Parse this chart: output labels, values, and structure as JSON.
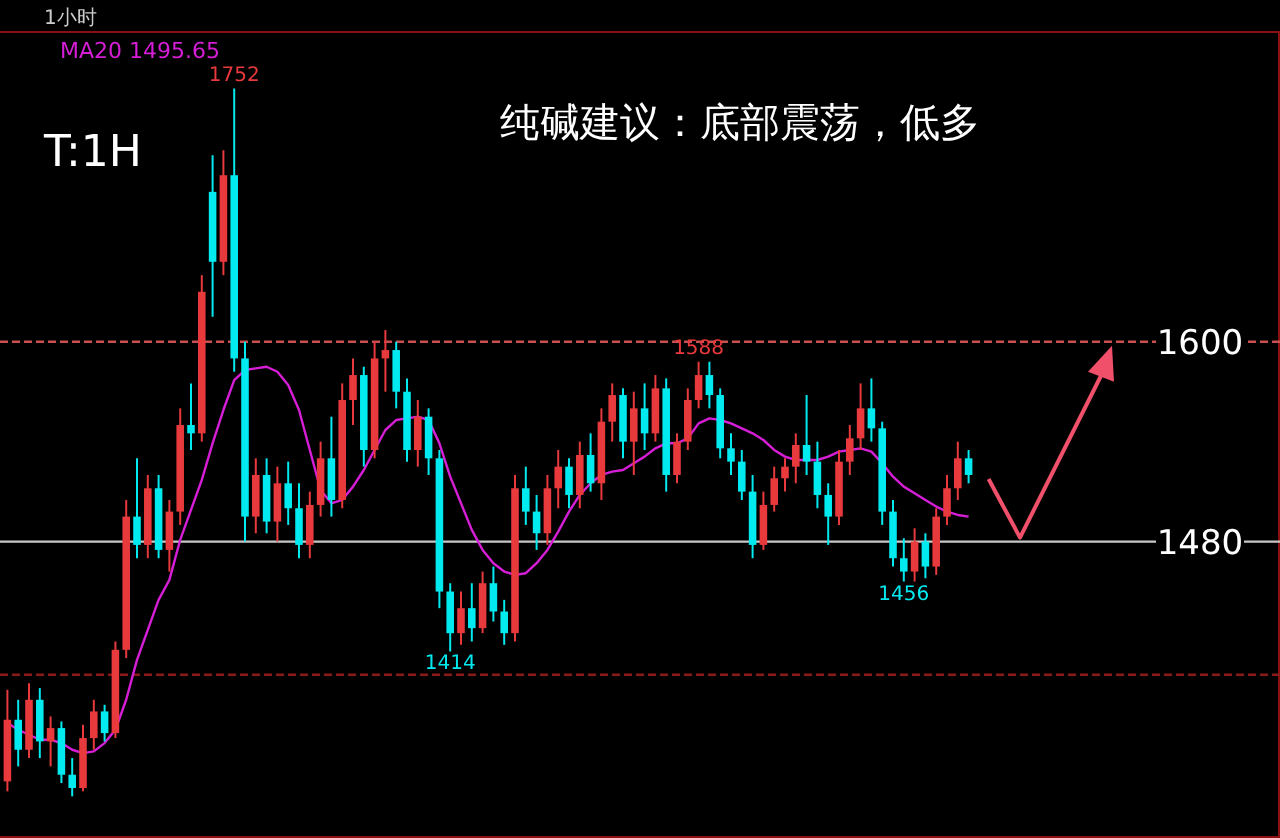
{
  "chart_data": {
    "type": "candlestick",
    "title": "纯碱建议：底部震荡，低多",
    "categories": [
      null,
      null,
      null,
      null,
      null,
      null,
      null,
      null,
      null,
      null,
      null,
      null,
      null,
      null,
      null,
      null,
      null,
      null,
      null,
      null,
      null,
      null,
      null,
      null,
      null,
      null,
      null,
      null,
      null,
      null,
      null,
      null,
      null,
      null,
      null,
      null,
      null,
      null,
      null,
      null,
      null,
      null,
      null,
      null,
      null,
      null,
      null,
      null,
      null,
      null,
      null,
      null,
      null,
      null,
      null,
      null,
      null,
      null,
      null,
      null,
      null,
      null,
      null,
      null,
      null,
      null,
      null,
      null,
      null,
      null,
      null,
      null,
      null,
      null,
      null,
      null,
      null,
      null,
      null,
      null,
      null,
      null,
      null,
      null,
      null,
      null,
      null,
      null,
      null,
      null
    ],
    "ohlc": [
      [
        1336,
        1391,
        1330,
        1373
      ],
      [
        1373,
        1385,
        1345,
        1355
      ],
      [
        1355,
        1395,
        1350,
        1385
      ],
      [
        1385,
        1392,
        1350,
        1360
      ],
      [
        1360,
        1375,
        1345,
        1368
      ],
      [
        1368,
        1372,
        1335,
        1340
      ],
      [
        1340,
        1350,
        1327,
        1332
      ],
      [
        1332,
        1370,
        1330,
        1362
      ],
      [
        1362,
        1385,
        1355,
        1378
      ],
      [
        1378,
        1382,
        1360,
        1365
      ],
      [
        1365,
        1420,
        1362,
        1415
      ],
      [
        1415,
        1505,
        1410,
        1495
      ],
      [
        1495,
        1530,
        1470,
        1478
      ],
      [
        1478,
        1520,
        1470,
        1512
      ],
      [
        1512,
        1520,
        1470,
        1475
      ],
      [
        1475,
        1505,
        1462,
        1498
      ],
      [
        1498,
        1560,
        1490,
        1550
      ],
      [
        1550,
        1575,
        1535,
        1545
      ],
      [
        1545,
        1640,
        1540,
        1630
      ],
      [
        1690,
        1712,
        1615,
        1648
      ],
      [
        1648,
        1715,
        1640,
        1700
      ],
      [
        1700,
        1752,
        1582,
        1590
      ],
      [
        1590,
        1600,
        1480,
        1495
      ],
      [
        1495,
        1530,
        1485,
        1520
      ],
      [
        1520,
        1530,
        1485,
        1492
      ],
      [
        1492,
        1525,
        1480,
        1515
      ],
      [
        1515,
        1528,
        1490,
        1500
      ],
      [
        1500,
        1515,
        1470,
        1478
      ],
      [
        1478,
        1510,
        1470,
        1502
      ],
      [
        1502,
        1540,
        1495,
        1530
      ],
      [
        1530,
        1555,
        1495,
        1505
      ],
      [
        1505,
        1575,
        1500,
        1565
      ],
      [
        1565,
        1590,
        1550,
        1580
      ],
      [
        1580,
        1585,
        1525,
        1535
      ],
      [
        1535,
        1600,
        1530,
        1590
      ],
      [
        1590,
        1607,
        1570,
        1595
      ],
      [
        1595,
        1600,
        1560,
        1570
      ],
      [
        1570,
        1578,
        1528,
        1535
      ],
      [
        1535,
        1565,
        1525,
        1555
      ],
      [
        1555,
        1560,
        1520,
        1530
      ],
      [
        1530,
        1535,
        1440,
        1450
      ],
      [
        1450,
        1455,
        1414,
        1425
      ],
      [
        1425,
        1450,
        1418,
        1440
      ],
      [
        1440,
        1455,
        1420,
        1428
      ],
      [
        1428,
        1462,
        1425,
        1455
      ],
      [
        1455,
        1465,
        1432,
        1438
      ],
      [
        1438,
        1445,
        1418,
        1425
      ],
      [
        1425,
        1520,
        1420,
        1512
      ],
      [
        1512,
        1525,
        1490,
        1498
      ],
      [
        1498,
        1508,
        1475,
        1485
      ],
      [
        1485,
        1520,
        1478,
        1512
      ],
      [
        1512,
        1535,
        1500,
        1525
      ],
      [
        1525,
        1530,
        1500,
        1508
      ],
      [
        1508,
        1540,
        1500,
        1532
      ],
      [
        1532,
        1545,
        1510,
        1515
      ],
      [
        1515,
        1560,
        1505,
        1552
      ],
      [
        1552,
        1575,
        1540,
        1568
      ],
      [
        1568,
        1572,
        1530,
        1540
      ],
      [
        1540,
        1570,
        1520,
        1560
      ],
      [
        1560,
        1575,
        1535,
        1545
      ],
      [
        1545,
        1580,
        1540,
        1572
      ],
      [
        1572,
        1578,
        1510,
        1520
      ],
      [
        1520,
        1545,
        1515,
        1540
      ],
      [
        1540,
        1572,
        1535,
        1565
      ],
      [
        1565,
        1588,
        1560,
        1580
      ],
      [
        1580,
        1588,
        1560,
        1568
      ],
      [
        1568,
        1572,
        1530,
        1536
      ],
      [
        1536,
        1545,
        1520,
        1528
      ],
      [
        1528,
        1535,
        1505,
        1510
      ],
      [
        1510,
        1520,
        1470,
        1478
      ],
      [
        1478,
        1510,
        1475,
        1502
      ],
      [
        1502,
        1525,
        1498,
        1518
      ],
      [
        1518,
        1530,
        1510,
        1525
      ],
      [
        1525,
        1545,
        1515,
        1538
      ],
      [
        1538,
        1568,
        1520,
        1528
      ],
      [
        1528,
        1540,
        1500,
        1508
      ],
      [
        1508,
        1515,
        1478,
        1495
      ],
      [
        1495,
        1535,
        1490,
        1528
      ],
      [
        1528,
        1550,
        1520,
        1542
      ],
      [
        1542,
        1575,
        1535,
        1560
      ],
      [
        1560,
        1578,
        1540,
        1548
      ],
      [
        1548,
        1552,
        1490,
        1498
      ],
      [
        1498,
        1505,
        1465,
        1470
      ],
      [
        1470,
        1482,
        1456,
        1462
      ],
      [
        1462,
        1488,
        1456,
        1480
      ],
      [
        1480,
        1485,
        1458,
        1465
      ],
      [
        1465,
        1500,
        1460,
        1495
      ],
      [
        1495,
        1520,
        1490,
        1512
      ],
      [
        1512,
        1540,
        1505,
        1530
      ],
      [
        1530,
        1535,
        1515,
        1520
      ]
    ],
    "colors": [
      "#e8393c",
      "#00eaf0",
      "#e8393c",
      "#00eaf0",
      "#e8393c",
      "#00eaf0",
      "#00eaf0",
      "#e8393c",
      "#e8393c",
      "#00eaf0",
      "#e8393c",
      "#e8393c",
      "#00eaf0",
      "#e8393c",
      "#00eaf0",
      "#e8393c",
      "#e8393c",
      "#00eaf0",
      "#e8393c",
      "#00eaf0",
      "#e8393c",
      "#00eaf0",
      "#00eaf0",
      "#e8393c",
      "#00eaf0",
      "#e8393c",
      "#00eaf0",
      "#00eaf0",
      "#e8393c",
      "#e8393c",
      "#00eaf0",
      "#e8393c",
      "#e8393c",
      "#00eaf0",
      "#e8393c",
      "#e8393c",
      "#00eaf0",
      "#00eaf0",
      "#e8393c",
      "#00eaf0",
      "#00eaf0",
      "#00eaf0",
      "#e8393c",
      "#00eaf0",
      "#e8393c",
      "#00eaf0",
      "#00eaf0",
      "#e8393c",
      "#00eaf0",
      "#00eaf0",
      "#e8393c",
      "#e8393c",
      "#00eaf0",
      "#e8393c",
      "#00eaf0",
      "#e8393c",
      "#e8393c",
      "#00eaf0",
      "#e8393c",
      "#00eaf0",
      "#e8393c",
      "#00eaf0",
      "#e8393c",
      "#e8393c",
      "#e8393c",
      "#00eaf0",
      "#00eaf0",
      "#00eaf0",
      "#00eaf0",
      "#00eaf0",
      "#e8393c",
      "#e8393c",
      "#e8393c",
      "#e8393c",
      "#00eaf0",
      "#00eaf0",
      "#00eaf0",
      "#e8393c",
      "#e8393c",
      "#e8393c",
      "#00eaf0",
      "#00eaf0",
      "#00eaf0",
      "#00eaf0",
      "#e8393c",
      "#00eaf0",
      "#e8393c",
      "#e8393c",
      "#e8393c",
      "#00eaf0"
    ],
    "series": [
      {
        "type": "line",
        "name": "MA20 1495.65",
        "color": "#d61ed6",
        "values": [
          1371,
          1367,
          1364,
          1361,
          1361,
          1359,
          1355,
          1353,
          1354,
          1359,
          1367,
          1385,
          1409,
          1427,
          1445,
          1457,
          1481,
          1499,
          1517,
          1539,
          1559,
          1577,
          1583,
          1584,
          1585,
          1582,
          1574,
          1559,
          1535,
          1511,
          1503,
          1505,
          1513,
          1523,
          1535,
          1547,
          1553,
          1554,
          1555,
          1553,
          1539,
          1519,
          1503,
          1487,
          1475,
          1467,
          1462,
          1460,
          1461,
          1467,
          1475,
          1486,
          1498,
          1508,
          1515,
          1520,
          1522,
          1523,
          1527,
          1531,
          1536,
          1539,
          1539,
          1542,
          1551,
          1554,
          1553,
          1551,
          1548,
          1545,
          1541,
          1535,
          1531,
          1529,
          1529,
          1529,
          1531,
          1534,
          1535,
          1536,
          1534,
          1527,
          1519,
          1513,
          1509,
          1505,
          1501,
          1498,
          1496,
          1495
        ]
      }
    ],
    "ylim": [
      1302,
      1786
    ],
    "yticks": [
      1600,
      1480
    ],
    "tick_labels": "y",
    "legend": "top",
    "ref_lines": [
      {
        "axis": "y",
        "value": 1600,
        "color": "#c85050",
        "line_style": "dashed"
      },
      {
        "axis": "y",
        "value": 1480,
        "color": "#c8c8c8"
      },
      {
        "axis": "y",
        "value": 1400,
        "color": "#8b1a1a",
        "line_style": "dashed"
      }
    ],
    "annotations": [
      "T:1H",
      "1小时",
      {
        "text": "1752",
        "y": 1752
      },
      {
        "text": "1588",
        "y": 1588
      },
      {
        "text": "1414",
        "y": 1414
      },
      {
        "text": "1456",
        "y": 1456
      }
    ]
  }
}
